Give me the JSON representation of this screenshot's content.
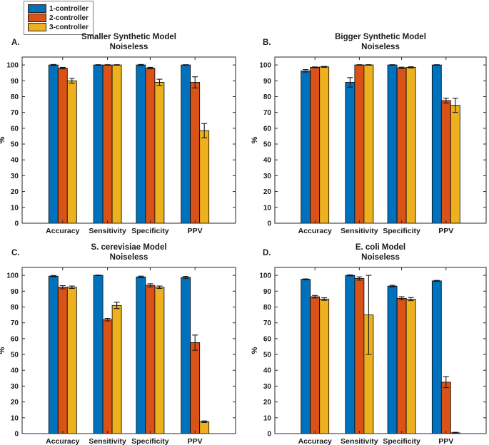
{
  "legend": {
    "position": "top-left-outside",
    "items": [
      {
        "label": "1-controller",
        "color": "#0072BD"
      },
      {
        "label": "2-controller",
        "color": "#D95319"
      },
      {
        "label": "3-controller",
        "color": "#EDB120"
      }
    ]
  },
  "axis": {
    "ylabel": "%",
    "yticks": [
      0,
      10,
      20,
      30,
      40,
      50,
      60,
      70,
      80,
      90,
      100
    ],
    "ylim": [
      0,
      105
    ],
    "grid": "off",
    "box": "on"
  },
  "chart_data": [
    {
      "type": "bar",
      "panel_label": "A.",
      "title": "Smaller Synthetic Model",
      "subtitle": "Noiseless",
      "categories": [
        "Accuracy",
        "Sensitivity",
        "Specificity",
        "PPV"
      ],
      "xlabel": "",
      "ylabel": "%",
      "ylim": [
        0,
        105
      ],
      "error_bars": true,
      "series": [
        {
          "name": "1-controller",
          "color": "#0072BD",
          "values": [
            100,
            100,
            100,
            100
          ],
          "errors": [
            0.3,
            0.2,
            0.3,
            0.2
          ]
        },
        {
          "name": "2-controller",
          "color": "#D95319",
          "values": [
            98,
            100,
            98,
            89
          ],
          "errors": [
            0.5,
            0.2,
            0.5,
            3.5
          ]
        },
        {
          "name": "3-controller",
          "color": "#EDB120",
          "values": [
            90,
            100,
            89,
            58.5
          ],
          "errors": [
            1.5,
            0.2,
            2,
            4.5
          ]
        }
      ]
    },
    {
      "type": "bar",
      "panel_label": "B.",
      "title": "Bigger Synthetic Model",
      "subtitle": "Noiseless",
      "categories": [
        "Accuracy",
        "Sensitivity",
        "Specificity",
        "PPV"
      ],
      "xlabel": "",
      "ylabel": "%",
      "ylim": [
        0,
        105
      ],
      "error_bars": true,
      "series": [
        {
          "name": "1-controller",
          "color": "#0072BD",
          "values": [
            96.3,
            89,
            100,
            100
          ],
          "errors": [
            0.8,
            3,
            0.2,
            0.2
          ]
        },
        {
          "name": "2-controller",
          "color": "#D95319",
          "values": [
            98.5,
            100,
            98.2,
            77.5
          ],
          "errors": [
            0.3,
            0.2,
            0.4,
            1.5
          ]
        },
        {
          "name": "3-controller",
          "color": "#EDB120",
          "values": [
            98.8,
            100,
            98.5,
            74.5
          ],
          "errors": [
            0.3,
            0.2,
            0.4,
            4.5
          ]
        }
      ]
    },
    {
      "type": "bar",
      "panel_label": "C.",
      "title": "S. cerevisiae Model",
      "subtitle": "Noiseless",
      "categories": [
        "Accuracy",
        "Sensitivity",
        "Specificity",
        "PPV"
      ],
      "xlabel": "",
      "ylabel": "%",
      "ylim": [
        0,
        105
      ],
      "error_bars": true,
      "series": [
        {
          "name": "1-controller",
          "color": "#0072BD",
          "values": [
            99.5,
            100,
            99,
            98.7
          ],
          "errors": [
            0.4,
            0.2,
            0.5,
            0.6
          ]
        },
        {
          "name": "2-controller",
          "color": "#D95319",
          "values": [
            92.5,
            72,
            93.7,
            57.5
          ],
          "errors": [
            1,
            0.8,
            1,
            4.8
          ]
        },
        {
          "name": "3-controller",
          "color": "#EDB120",
          "values": [
            92.5,
            81,
            92.5,
            7.5
          ],
          "errors": [
            0.8,
            2,
            0.8,
            0.5
          ]
        }
      ]
    },
    {
      "type": "bar",
      "panel_label": "D.",
      "title": "E. coli Model",
      "subtitle": "Noiseless",
      "categories": [
        "Accuracy",
        "Sensitivity",
        "Specificity",
        "PPV"
      ],
      "xlabel": "",
      "ylabel": "%",
      "ylim": [
        0,
        105
      ],
      "error_bars": true,
      "series": [
        {
          "name": "1-controller",
          "color": "#0072BD",
          "values": [
            97.5,
            100,
            93.2,
            96.5
          ],
          "errors": [
            0.3,
            0.3,
            0.5,
            0.3
          ]
        },
        {
          "name": "2-controller",
          "color": "#D95319",
          "values": [
            86.5,
            98,
            85.5,
            32.5
          ],
          "errors": [
            0.8,
            1,
            1,
            3.5
          ]
        },
        {
          "name": "3-controller",
          "color": "#EDB120",
          "values": [
            85,
            75,
            85,
            0.5
          ],
          "errors": [
            0.8,
            25,
            1,
            0.3
          ]
        }
      ]
    }
  ]
}
